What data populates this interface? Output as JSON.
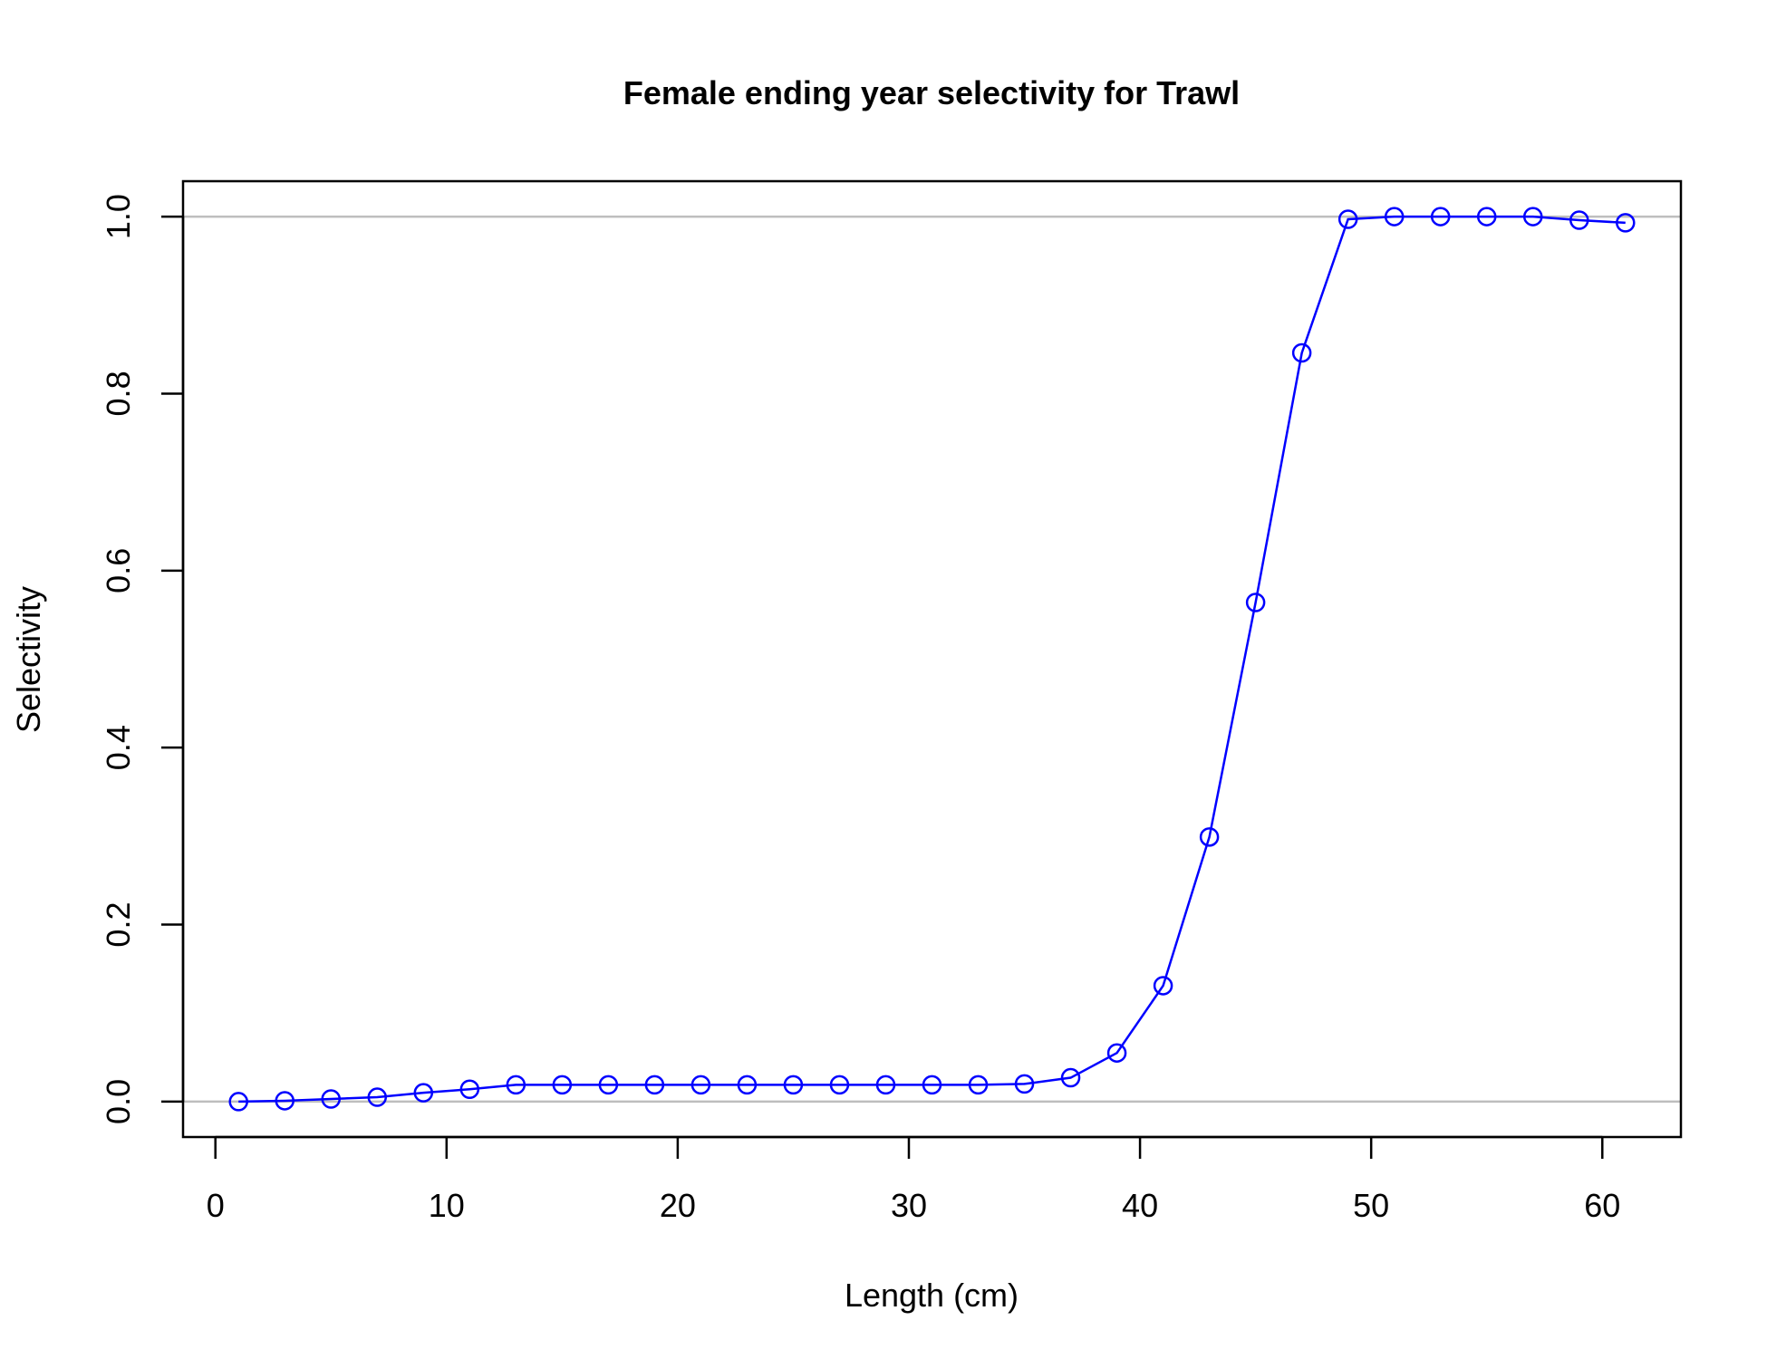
{
  "chart_data": {
    "type": "line",
    "title": "Female ending year selectivity for Trawl",
    "xlabel": "Length (cm)",
    "ylabel": "Selectivity",
    "xlim": [
      -1.4,
      63.4
    ],
    "ylim": [
      -0.04,
      1.04
    ],
    "x_ticks": [
      0,
      10,
      20,
      30,
      40,
      50,
      60
    ],
    "x_tick_labels": [
      "0",
      "10",
      "20",
      "30",
      "40",
      "50",
      "60"
    ],
    "y_ticks": [
      0.0,
      0.2,
      0.4,
      0.6,
      0.8,
      1.0
    ],
    "y_tick_labels": [
      "0.0",
      "0.2",
      "0.4",
      "0.6",
      "0.8",
      "1.0"
    ],
    "reference_lines": [
      0,
      1
    ],
    "grid": false,
    "markers": "open-circle",
    "series": [
      {
        "x": [
          1,
          3,
          5,
          7,
          9,
          11,
          13,
          15,
          17,
          19,
          21,
          23,
          25,
          27,
          29,
          31,
          33,
          35,
          37,
          39,
          41,
          43,
          45,
          47,
          49,
          51,
          53,
          55,
          57,
          59,
          61
        ],
        "values": [
          0.0,
          0.001,
          0.003,
          0.005,
          0.01,
          0.014,
          0.019,
          0.019,
          0.019,
          0.019,
          0.019,
          0.019,
          0.019,
          0.019,
          0.019,
          0.019,
          0.019,
          0.02,
          0.027,
          0.055,
          0.131,
          0.299,
          0.564,
          0.846,
          0.997,
          1.0,
          1.0,
          1.0,
          1.0,
          0.996,
          0.993
        ]
      }
    ]
  },
  "colors": {
    "series": "#0000ff",
    "reference_line": "#bebebe",
    "axis": "#000000"
  }
}
